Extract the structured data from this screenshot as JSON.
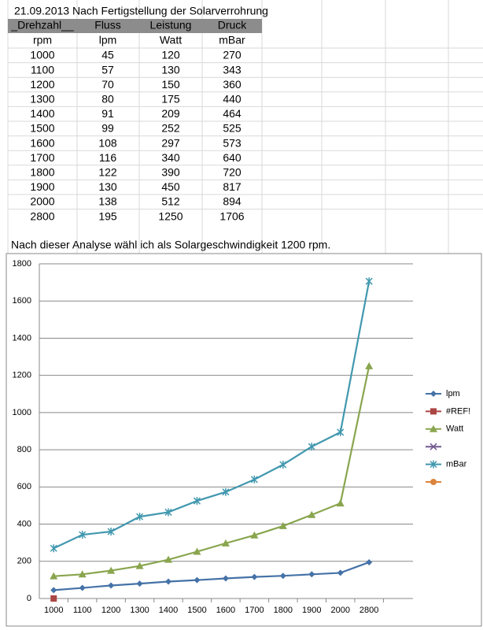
{
  "title": "21.09.2013 Nach Fertigstellung der Solarverrohrung",
  "table": {
    "header": [
      "_Drehzahl__",
      "Fluss",
      "Leistung",
      "Druck"
    ],
    "units": [
      "rpm",
      "lpm",
      "Watt",
      "mBar"
    ],
    "rows": [
      [
        1000,
        45,
        120,
        270
      ],
      [
        1100,
        57,
        130,
        343
      ],
      [
        1200,
        70,
        150,
        360
      ],
      [
        1300,
        80,
        175,
        440
      ],
      [
        1400,
        91,
        209,
        464
      ],
      [
        1500,
        99,
        252,
        525
      ],
      [
        1600,
        108,
        297,
        573
      ],
      [
        1700,
        116,
        340,
        640
      ],
      [
        1800,
        122,
        390,
        720
      ],
      [
        1900,
        130,
        450,
        817
      ],
      [
        2000,
        138,
        512,
        894
      ],
      [
        2800,
        195,
        1250,
        1706
      ]
    ]
  },
  "note": "Nach dieser Analyse wähl ich als Solargeschwindigkeit 1200 rpm.",
  "chart_data": {
    "type": "line",
    "categories": [
      "1000",
      "1100",
      "1200",
      "1300",
      "1400",
      "1500",
      "1600",
      "1700",
      "1800",
      "1900",
      "2000",
      "2800"
    ],
    "series": [
      {
        "name": "lpm",
        "color": "#4572A7",
        "marker": "diamond",
        "values": [
          45,
          57,
          70,
          80,
          91,
          99,
          108,
          116,
          122,
          130,
          138,
          195
        ]
      },
      {
        "name": "#REF!",
        "color": "#AA4643",
        "marker": "square",
        "values": [
          0,
          null,
          null,
          null,
          null,
          null,
          null,
          null,
          null,
          null,
          null,
          null
        ]
      },
      {
        "name": "Watt",
        "color": "#89A54E",
        "marker": "triangle",
        "values": [
          120,
          130,
          150,
          175,
          209,
          252,
          297,
          340,
          390,
          450,
          512,
          1250
        ]
      },
      {
        "color": "#71588F",
        "marker": "x",
        "values": [
          null,
          null,
          null,
          null,
          null,
          null,
          null,
          null,
          null,
          null,
          null,
          null
        ]
      },
      {
        "name": "mBar",
        "color": "#4198AF",
        "marker": "star",
        "values": [
          270,
          343,
          360,
          440,
          464,
          525,
          573,
          640,
          720,
          817,
          894,
          1706
        ]
      },
      {
        "color": "#DB843D",
        "marker": "circle",
        "values": [
          null,
          null,
          null,
          null,
          null,
          null,
          null,
          null,
          null,
          null,
          null,
          null
        ]
      }
    ],
    "ylim": [
      0,
      1800
    ],
    "yticks": [
      0,
      200,
      400,
      600,
      800,
      1000,
      1200,
      1400,
      1600,
      1800
    ],
    "grid": true
  }
}
